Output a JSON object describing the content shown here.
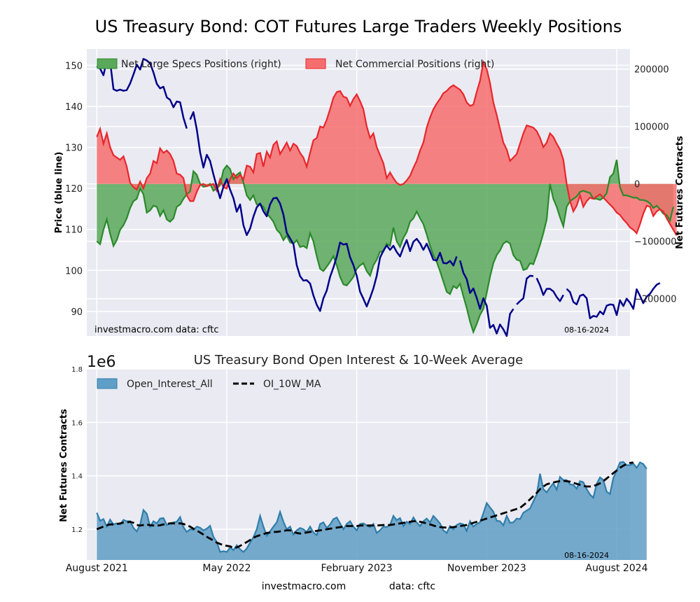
{
  "figure": {
    "title": "US Treasury Bond: COT Futures Large Traders Weekly Positions",
    "footer_left": "investmac​ro.com",
    "footer_right": "data: cftc"
  },
  "colors": {
    "background": "#eaeaf2",
    "grid": "#ffffff",
    "price_line": "#00008b",
    "specs_fill": "#5aa85a",
    "specs_line": "#2a8a2a",
    "comm_fill": "#f66d6d",
    "comm_line": "#e8262b",
    "oi_fill": "#5f9ec6",
    "oi_line": "#2f7eaa",
    "ma_line": "#000000"
  },
  "chart_data": [
    {
      "type": "area",
      "title": "",
      "ylabel_left": "Price (blue line)",
      "ylabel_right": "Net Futures Contracts",
      "watermark_left": "investmacro.com   data: cftc",
      "date_label": "08-16-2024",
      "left_axis": {
        "ylim": [
          84,
          154
        ],
        "ticks": [
          90,
          100,
          110,
          120,
          130,
          140,
          150
        ]
      },
      "right_axis": {
        "ylim": [
          -265000,
          235000
        ],
        "ticks": [
          200000,
          100000,
          0,
          -100000,
          -200000
        ]
      },
      "legend": [
        "Net Large Specs Positions (right)",
        "Net Commercial Positions (right)"
      ],
      "legend_position": "top",
      "grid": true,
      "x_range": [
        -3,
        160
      ],
      "x_ticks_weeks": [
        0,
        39,
        78,
        117,
        156
      ],
      "price": [
        149.8,
        149.2,
        147.6,
        151.2,
        151.0,
        144.2,
        143.8,
        144.1,
        143.8,
        144.0,
        145.6,
        147.8,
        150.2,
        149.0,
        151.6,
        151.2,
        150.5,
        148.3,
        145.5,
        144.4,
        144.8,
        142.2,
        141.6,
        139.8,
        141.2,
        141.0,
        137.2,
        134.6,
        136.8,
        138.6,
        134.4,
        128.8,
        125.1,
        128.2,
        126.7,
        123.4,
        120.4,
        117.6,
        120.4,
        122.3,
        119.7,
        117.6,
        114.3,
        116.1,
        111.0,
        108.6,
        110.2,
        113.1,
        115.4,
        116.3,
        114.4,
        113.2,
        116.1,
        117.6,
        117.7,
        116.3,
        113.6,
        109.2,
        107.8,
        106.4,
        101.3,
        98.6,
        97.5,
        97.6,
        96.8,
        93.9,
        91.6,
        90.1,
        93.2,
        95.1,
        98.4,
        100.7,
        103.4,
        106.8,
        106.3,
        106.5,
        103.2,
        101.3,
        98.7,
        94.8,
        93.1,
        91.2,
        93.3,
        95.6,
        98.7,
        103.1,
        104.8,
        106.1,
        105.0,
        106.0,
        104.5,
        103.4,
        105.6,
        107.4,
        104.7,
        107.0,
        107.7,
        106.6,
        105.0,
        106.5,
        104.6,
        102.6,
        102.4,
        104.3,
        101.8,
        101.7,
        102.3,
        101.2,
        103.4,
        102.4,
        99.4,
        97.9,
        94.5,
        95.6,
        93.3,
        90.6,
        93.2,
        91.4,
        86.0,
        86.7,
        84.6,
        86.8,
        85.6,
        84.0,
        89.4,
        90.6,
        91.7,
        92.5,
        93.2,
        98.0,
        98.7,
        98.6,
        98.1,
        96.3,
        94.0,
        95.5,
        95.5,
        94.9,
        93.5,
        92.5,
        94.0,
        95.5,
        94.7,
        92.3,
        91.7,
        93.8,
        94.1,
        93.2,
        88.3,
        88.9,
        88.7,
        90.0,
        89.3,
        91.4,
        91.7,
        91.6,
        89.1,
        92.7,
        91.3,
        93.1,
        92.1,
        90.6,
        95.4,
        93.8,
        92.0,
        93.6,
        94.3,
        95.5,
        96.5,
        96.9
      ],
      "price_breaks": [
        28,
        109,
        126,
        132,
        141
      ],
      "specs": [
        -100000,
        -105000,
        -80000,
        -62000,
        -87000,
        -108000,
        -98000,
        -80000,
        -72000,
        -60000,
        -42000,
        -30000,
        -26000,
        -8000,
        -18000,
        -50000,
        -46000,
        -38000,
        -40000,
        -56000,
        -46000,
        -62000,
        -66000,
        -60000,
        -40000,
        -36000,
        -26000,
        -18000,
        -13000,
        22000,
        16000,
        0,
        -5000,
        -4000,
        0,
        -12000,
        -8000,
        -2000,
        24000,
        32000,
        26000,
        8000,
        16000,
        20000,
        2000,
        -20000,
        -28000,
        -20000,
        -36000,
        -35000,
        -40000,
        -52000,
        -58000,
        -66000,
        -80000,
        -86000,
        -98000,
        -90000,
        -102000,
        -104000,
        -98000,
        -110000,
        -108000,
        -112000,
        -86000,
        -100000,
        -126000,
        -148000,
        -152000,
        -144000,
        -136000,
        -126000,
        -142000,
        -162000,
        -175000,
        -177000,
        -170000,
        -162000,
        -148000,
        -142000,
        -138000,
        -152000,
        -160000,
        -142000,
        -132000,
        -118000,
        -118000,
        -104000,
        -108000,
        -76000,
        -100000,
        -110000,
        -94000,
        -84000,
        -66000,
        -60000,
        -48000,
        -60000,
        -70000,
        -88000,
        -108000,
        -124000,
        -136000,
        -152000,
        -170000,
        -188000,
        -192000,
        -178000,
        -182000,
        -174000,
        -196000,
        -216000,
        -240000,
        -258000,
        -244000,
        -228000,
        -218000,
        -190000,
        -162000,
        -138000,
        -124000,
        -116000,
        -104000,
        -100000,
        -104000,
        -124000,
        -132000,
        -134000,
        -150000,
        -148000,
        -138000,
        -140000,
        -124000,
        -106000,
        -86000,
        -62000,
        0,
        -26000,
        -40000,
        -58000,
        -74000,
        -40000,
        -30000,
        -26000,
        -22000,
        -14000,
        -12000,
        -14000,
        -16000,
        -26000,
        -26000,
        -28000,
        -24000,
        -16000,
        12000,
        18000,
        42000,
        -6000,
        -20000,
        -20000,
        -22000,
        -24000,
        -24000,
        -28000,
        -28000,
        -30000,
        -34000,
        -42000,
        -38000,
        -44000,
        -52000,
        -54000,
        -64000,
        -40000
      ],
      "commercial": [
        82000,
        96000,
        70000,
        88000,
        64000,
        50000,
        46000,
        42000,
        48000,
        30000,
        2000,
        -6000,
        -10000,
        4000,
        -8000,
        10000,
        18000,
        40000,
        36000,
        62000,
        54000,
        58000,
        52000,
        40000,
        18000,
        16000,
        10000,
        -20000,
        -30000,
        -30000,
        -14000,
        -2000,
        0,
        -4000,
        -2000,
        0,
        -12000,
        8000,
        -6000,
        -8000,
        8000,
        18000,
        10000,
        16000,
        8000,
        32000,
        30000,
        20000,
        52000,
        54000,
        30000,
        56000,
        46000,
        68000,
        74000,
        52000,
        62000,
        72000,
        58000,
        70000,
        66000,
        54000,
        46000,
        30000,
        54000,
        76000,
        80000,
        100000,
        98000,
        112000,
        130000,
        150000,
        160000,
        162000,
        152000,
        150000,
        136000,
        148000,
        156000,
        144000,
        130000,
        100000,
        80000,
        88000,
        64000,
        50000,
        36000,
        10000,
        20000,
        10000,
        2000,
        -2000,
        0,
        6000,
        14000,
        28000,
        40000,
        58000,
        72000,
        98000,
        116000,
        130000,
        140000,
        148000,
        158000,
        162000,
        168000,
        172000,
        168000,
        164000,
        156000,
        142000,
        136000,
        138000,
        160000,
        180000,
        212000,
        200000,
        176000,
        142000,
        120000,
        96000,
        72000,
        60000,
        40000,
        46000,
        52000,
        70000,
        88000,
        102000,
        100000,
        98000,
        92000,
        80000,
        64000,
        72000,
        88000,
        82000,
        70000,
        60000,
        42000,
        0,
        -30000,
        -48000,
        -38000,
        -20000,
        -40000,
        -30000,
        -24000,
        -26000,
        -22000,
        -18000,
        -24000,
        -30000,
        -36000,
        -42000,
        -50000,
        -54000,
        -62000,
        -68000,
        -76000,
        -80000,
        -86000,
        -70000,
        -52000,
        -38000,
        -40000,
        -56000,
        -48000,
        -44000,
        -48000,
        -60000,
        -70000,
        -80000,
        -90000
      ]
    },
    {
      "type": "area",
      "title": "US Treasury Bond Open Interest & 10-Week Average",
      "ylabel": "Net Futures Contracts",
      "offset_label": "1e6",
      "date_label": "08-16-2024",
      "ylim": [
        1.085,
        1.8
      ],
      "yticks": [
        1.2,
        1.4,
        1.6,
        1.8
      ],
      "legend": [
        "Open_Interest_All",
        "OI_10W_MA"
      ],
      "legend_position": "top-left",
      "grid": true,
      "x_range": [
        -3,
        160
      ],
      "x_tick_weeks": [
        0,
        39,
        78,
        117,
        156
      ],
      "x_tick_labels": [
        "August 2021",
        "May 2022",
        "February 2023",
        "November 2023",
        "August 2024"
      ],
      "open_interest": [
        1.262,
        1.232,
        1.238,
        1.21,
        1.236,
        1.218,
        1.222,
        1.218,
        1.235,
        1.23,
        1.23,
        1.205,
        1.192,
        1.218,
        1.272,
        1.258,
        1.21,
        1.23,
        1.222,
        1.24,
        1.242,
        1.216,
        1.222,
        1.226,
        1.228,
        1.246,
        1.208,
        1.19,
        1.2,
        1.198,
        1.21,
        1.206,
        1.196,
        1.202,
        1.213,
        1.172,
        1.152,
        1.115,
        1.118,
        1.115,
        1.132,
        1.122,
        1.14,
        1.125,
        1.115,
        1.128,
        1.15,
        1.17,
        1.2,
        1.25,
        1.21,
        1.176,
        1.192,
        1.21,
        1.226,
        1.265,
        1.228,
        1.2,
        1.21,
        1.18,
        1.196,
        1.205,
        1.2,
        1.19,
        1.21,
        1.188,
        1.178,
        1.22,
        1.226,
        1.205,
        1.218,
        1.238,
        1.244,
        1.222,
        1.2,
        1.22,
        1.23,
        1.21,
        1.196,
        1.22,
        1.222,
        1.214,
        1.208,
        1.22,
        1.186,
        1.196,
        1.21,
        1.208,
        1.216,
        1.25,
        1.234,
        1.242,
        1.212,
        1.228,
        1.22,
        1.244,
        1.225,
        1.212,
        1.23,
        1.24,
        1.225,
        1.25,
        1.236,
        1.222,
        1.196,
        1.186,
        1.212,
        1.2,
        1.216,
        1.222,
        1.218,
        1.194,
        1.23,
        1.21,
        1.22,
        1.226,
        1.26,
        1.298,
        1.282,
        1.266,
        1.232,
        1.23,
        1.215,
        1.25,
        1.224,
        1.226,
        1.24,
        1.238,
        1.262,
        1.27,
        1.278,
        1.304,
        1.33,
        1.408,
        1.35,
        1.338,
        1.356,
        1.372,
        1.348,
        1.396,
        1.384,
        1.384,
        1.368,
        1.366,
        1.352,
        1.38,
        1.376,
        1.35,
        1.33,
        1.318,
        1.37,
        1.394,
        1.384,
        1.34,
        1.332,
        1.392,
        1.42,
        1.45,
        1.452,
        1.44,
        1.44,
        1.446,
        1.43,
        1.45,
        1.444,
        1.426
      ],
      "oi_ma": [
        1.2,
        1.205,
        1.21,
        1.215,
        1.218,
        1.218,
        1.22,
        1.222,
        1.225,
        1.226,
        1.228,
        1.224,
        1.216,
        1.214,
        1.216,
        1.218,
        1.215,
        1.214,
        1.213,
        1.215,
        1.218,
        1.22,
        1.222,
        1.222,
        1.222,
        1.222,
        1.22,
        1.215,
        1.21,
        1.202,
        1.195,
        1.188,
        1.18,
        1.172,
        1.165,
        1.158,
        1.15,
        1.145,
        1.14,
        1.138,
        1.136,
        1.13,
        1.132,
        1.138,
        1.145,
        1.152,
        1.16,
        1.168,
        1.174,
        1.178,
        1.182,
        1.186,
        1.188,
        1.19,
        1.19,
        1.192,
        1.194,
        1.196,
        1.196,
        1.19,
        1.186,
        1.184,
        1.186,
        1.188,
        1.19,
        1.192,
        1.194,
        1.196,
        1.198,
        1.2,
        1.202,
        1.204,
        1.206,
        1.208,
        1.21,
        1.212,
        1.212,
        1.212,
        1.212,
        1.214,
        1.214,
        1.214,
        1.214,
        1.214,
        1.214,
        1.215,
        1.216,
        1.216,
        1.216,
        1.218,
        1.22,
        1.222,
        1.224,
        1.226,
        1.228,
        1.23,
        1.23,
        1.228,
        1.225,
        1.222,
        1.218,
        1.214,
        1.21,
        1.208,
        1.207,
        1.206,
        1.207,
        1.208,
        1.21,
        1.212,
        1.214,
        1.216,
        1.22,
        1.224,
        1.228,
        1.232,
        1.236,
        1.24,
        1.244,
        1.248,
        1.252,
        1.256,
        1.26,
        1.264,
        1.268,
        1.272,
        1.276,
        1.28,
        1.29,
        1.3,
        1.312,
        1.324,
        1.336,
        1.35,
        1.36,
        1.368,
        1.372,
        1.375,
        1.378,
        1.38,
        1.381,
        1.38,
        1.378,
        1.374,
        1.37,
        1.366,
        1.362,
        1.36,
        1.36,
        1.362,
        1.366,
        1.372,
        1.38,
        1.39,
        1.4,
        1.41,
        1.42,
        1.43,
        1.438,
        1.444,
        1.448,
        1.45
      ]
    }
  ]
}
